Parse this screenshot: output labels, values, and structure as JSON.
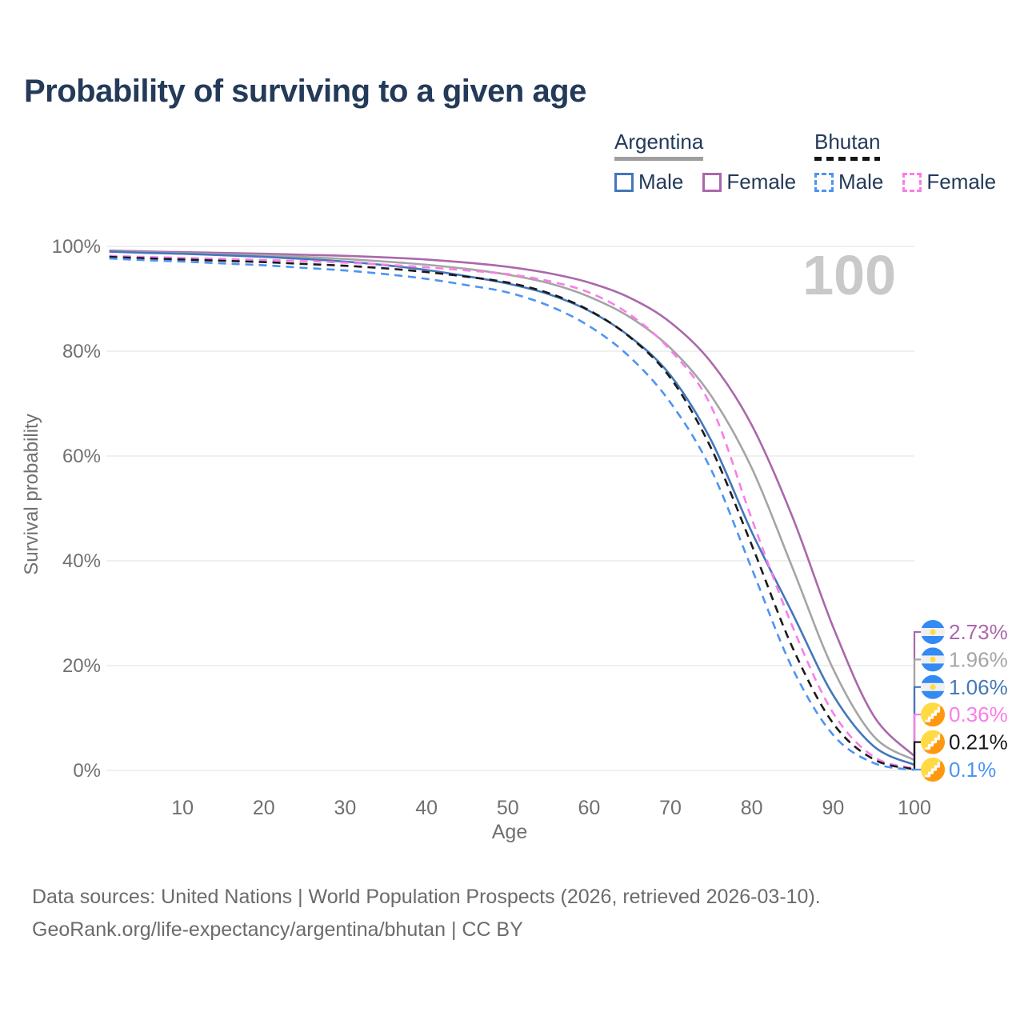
{
  "title": "Probability of surviving to a given age",
  "legend": {
    "groups": [
      {
        "label": "Argentina",
        "style": "solid",
        "entries": [
          {
            "label": "Male",
            "color": "#4577b9"
          },
          {
            "label": "Female",
            "color": "#aa68ab"
          }
        ]
      },
      {
        "label": "Bhutan",
        "style": "dashed",
        "entries": [
          {
            "label": "Male",
            "color": "#4d94f2"
          },
          {
            "label": "Female",
            "color": "#f97de9"
          }
        ]
      }
    ]
  },
  "chart_data": {
    "type": "line",
    "title": "Probability of surviving to a given age",
    "xlabel": "Age",
    "ylabel": "Survival probability",
    "watermark": "100",
    "xlim": [
      0,
      100
    ],
    "ylim": [
      0,
      100
    ],
    "grid": "horizontal",
    "legend_position": "top-right",
    "x_tick_values": [
      10,
      20,
      30,
      40,
      50,
      60,
      70,
      80,
      90,
      100
    ],
    "x_tick_labels": [
      "10",
      "20",
      "30",
      "40",
      "50",
      "60",
      "70",
      "80",
      "90",
      "100"
    ],
    "y_tick_values": [
      0,
      20,
      40,
      60,
      80,
      100
    ],
    "y_tick_labels": [
      "0%",
      "20%",
      "40%",
      "60%",
      "80%",
      "100%"
    ],
    "x": [
      1,
      5,
      10,
      15,
      20,
      25,
      30,
      35,
      40,
      45,
      50,
      55,
      60,
      65,
      70,
      75,
      80,
      85,
      90,
      95,
      100
    ],
    "series": [
      {
        "name": "Argentina Female",
        "country": "Argentina",
        "sex": "Female",
        "color": "#aa68ab",
        "line_style": "solid",
        "flag": "argentina",
        "end_label": "2.73%",
        "values": [
          99.2,
          99.05,
          98.9,
          98.75,
          98.6,
          98.4,
          98.2,
          97.9,
          97.5,
          96.9,
          96.1,
          94.9,
          93.1,
          90.2,
          85.5,
          77.9,
          65.9,
          48.4,
          27.4,
          10.4,
          2.73
        ]
      },
      {
        "name": "Argentina (both sexes)",
        "country": "Argentina",
        "sex": "Both",
        "color": "#a5a5a5",
        "line_style": "solid",
        "flag": "argentina",
        "end_label": "1.96%",
        "values": [
          99.1,
          98.9,
          98.7,
          98.5,
          98.3,
          98.0,
          97.6,
          97.1,
          96.5,
          95.7,
          94.6,
          93.0,
          90.4,
          86.5,
          80.6,
          71.5,
          57.7,
          38.7,
          19.4,
          6.5,
          1.96
        ]
      },
      {
        "name": "Argentina Male",
        "country": "Argentina",
        "sex": "Male",
        "color": "#4577b9",
        "line_style": "solid",
        "flag": "argentina",
        "end_label": "1.06%",
        "values": [
          99.0,
          98.8,
          98.6,
          98.3,
          98.0,
          97.6,
          97.1,
          96.4,
          95.5,
          94.3,
          92.9,
          90.9,
          87.7,
          82.8,
          75.4,
          63.0,
          45.5,
          30.0,
          14.4,
          4.6,
          1.06
        ]
      },
      {
        "name": "Bhutan Female",
        "country": "Bhutan",
        "sex": "Female",
        "color": "#f97de9",
        "line_style": "dashed",
        "flag": "bhutan",
        "end_label": "0.36%",
        "values": [
          98.2,
          98.0,
          97.8,
          97.6,
          97.4,
          97.2,
          96.9,
          96.5,
          96.0,
          95.4,
          94.7,
          93.4,
          91.2,
          87.0,
          80.2,
          69.5,
          48.0,
          27.5,
          11.0,
          2.6,
          0.36
        ]
      },
      {
        "name": "Bhutan (both sexes)",
        "country": "Bhutan",
        "sex": "Both",
        "color": "#1a1a1a",
        "line_style": "dashed",
        "flag": "bhutan",
        "end_label": "0.21%",
        "values": [
          98.0,
          97.75,
          97.5,
          97.25,
          97.0,
          96.65,
          96.3,
          95.8,
          95.1,
          94.2,
          93.1,
          91.1,
          87.8,
          82.7,
          74.9,
          61.5,
          43.0,
          23.5,
          9.0,
          2.1,
          0.21
        ]
      },
      {
        "name": "Bhutan Male",
        "country": "Bhutan",
        "sex": "Male",
        "color": "#4d94f2",
        "line_style": "dashed",
        "flag": "bhutan",
        "end_label": "0.1%",
        "values": [
          97.7,
          97.4,
          97.1,
          96.75,
          96.4,
          95.9,
          95.4,
          94.7,
          93.8,
          92.6,
          91.2,
          88.7,
          84.8,
          78.9,
          70.2,
          57.4,
          38.5,
          19.5,
          6.8,
          1.4,
          0.1
        ]
      }
    ]
  },
  "footer": {
    "line1": "Data sources: United Nations | World Population Prospects (2026, retrieved 2026-03-10).",
    "line2": "GeoRank.org/life-expectancy/argentina/bhutan | CC BY"
  },
  "colors": {
    "title_text": "#233a59",
    "axis_text": "#707070",
    "gridline": "#e8e8e8",
    "watermark": "#c9c9c9",
    "footer_text": "#6b6b6b",
    "argentina_underline": "#9e9e9e",
    "bhutan_underline": "#151515"
  }
}
